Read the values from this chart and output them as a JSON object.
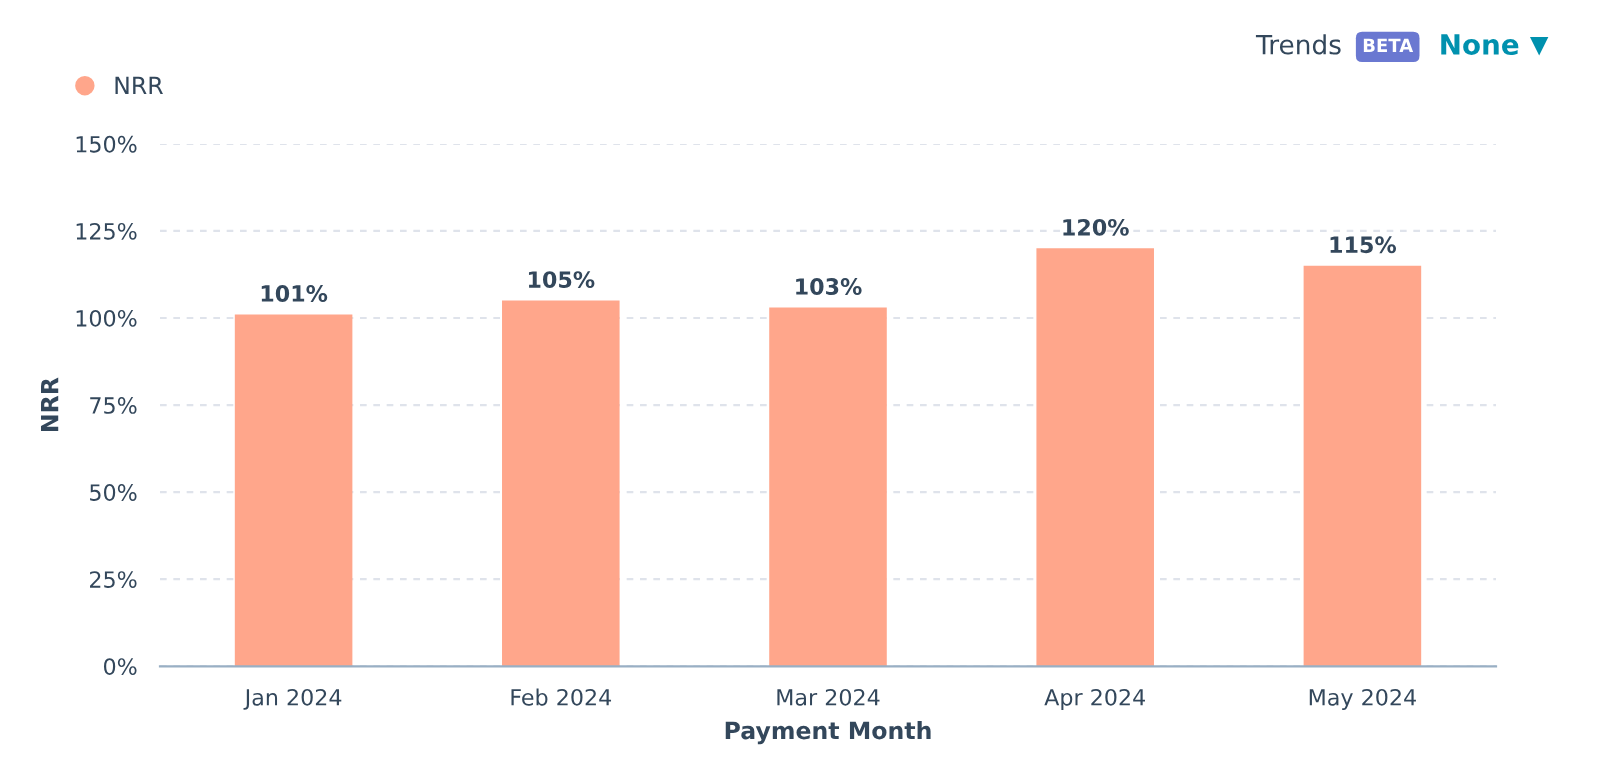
{
  "chart_data": {
    "type": "bar",
    "xlabel": "Payment Month",
    "ylabel": "NRR",
    "categories": [
      "Jan 2024",
      "Feb 2024",
      "Mar 2024",
      "Apr 2024",
      "May 2024"
    ],
    "series": [
      {
        "name": "NRR",
        "color": "#ffa68b",
        "values": [
          101,
          105,
          103,
          120,
          115
        ],
        "value_labels": [
          "101%",
          "105%",
          "103%",
          "120%",
          "115%"
        ]
      }
    ],
    "ylim": [
      0,
      150
    ],
    "yticks": [
      {
        "value": 0,
        "label": "0%"
      },
      {
        "value": 25,
        "label": "25%"
      },
      {
        "value": 50,
        "label": "50%"
      },
      {
        "value": 75,
        "label": "75%"
      },
      {
        "value": 100,
        "label": "100%"
      },
      {
        "value": 125,
        "label": "125%"
      },
      {
        "value": 150,
        "label": "150%"
      }
    ],
    "grid": "y",
    "legend": "top left",
    "annotations": [
      "Trends",
      "BETA",
      "None"
    ]
  }
}
